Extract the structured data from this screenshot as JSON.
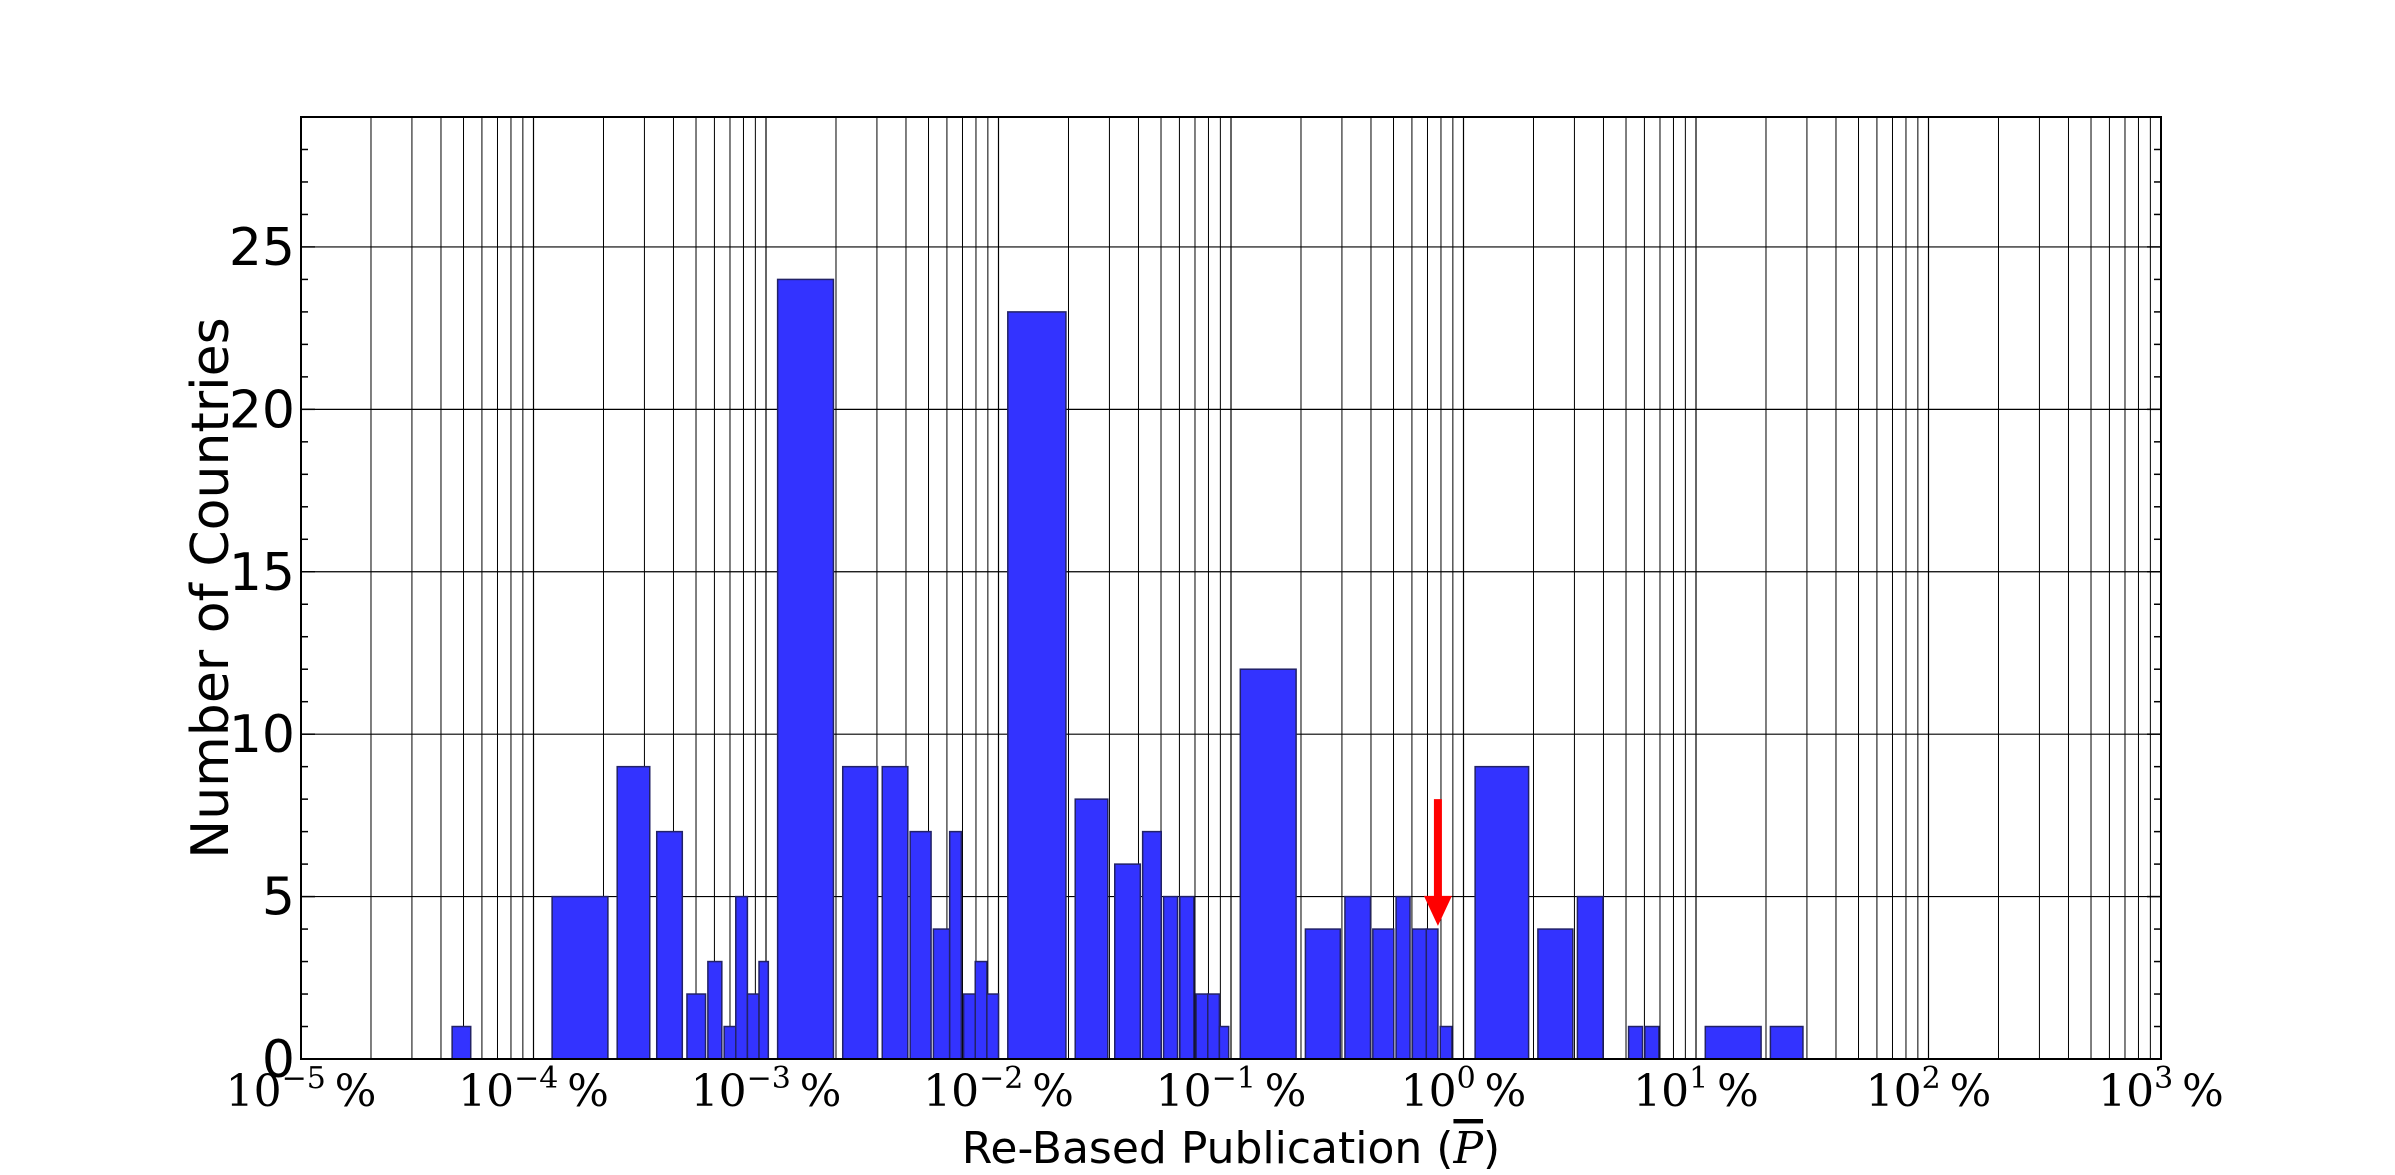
{
  "chart_data": {
    "type": "bar",
    "title": "",
    "xlabel": "Re-Based Publication (P)",
    "xlabel_parts": {
      "prefix": "Re-Based Publication (",
      "symbol": "P",
      "suffix": ")"
    },
    "ylabel": "Number of Countries",
    "x_scale": "log",
    "xlim_exponent": [
      -5,
      3
    ],
    "ylim": [
      0,
      29
    ],
    "grid": true,
    "x_ticks": [
      {
        "base": "10",
        "exp": "−5",
        "unit": "%",
        "value": -5
      },
      {
        "base": "10",
        "exp": "−4",
        "unit": "%",
        "value": -4
      },
      {
        "base": "10",
        "exp": "−3",
        "unit": "%",
        "value": -3
      },
      {
        "base": "10",
        "exp": "−2",
        "unit": "%",
        "value": -2
      },
      {
        "base": "10",
        "exp": "−1",
        "unit": "%",
        "value": -1
      },
      {
        "base": "10",
        "exp": "0",
        "unit": "%",
        "value": 0
      },
      {
        "base": "10",
        "exp": "1",
        "unit": "%",
        "value": 1
      },
      {
        "base": "10",
        "exp": "2",
        "unit": "%",
        "value": 2
      },
      {
        "base": "10",
        "exp": "3",
        "unit": "%",
        "value": 3
      }
    ],
    "y_ticks": [
      "0",
      "5",
      "10",
      "15",
      "20",
      "25"
    ],
    "bar_color": "#3333ff",
    "bar_edge_color": "#222266",
    "bars": [
      {
        "x0": -4.35,
        "x1": -4.27,
        "count": 1
      },
      {
        "x0": -3.92,
        "x1": -3.68,
        "count": 5
      },
      {
        "x0": -3.64,
        "x1": -3.5,
        "count": 9
      },
      {
        "x0": -3.47,
        "x1": -3.36,
        "count": 7
      },
      {
        "x0": -3.34,
        "x1": -3.26,
        "count": 2
      },
      {
        "x0": -3.25,
        "x1": -3.19,
        "count": 3
      },
      {
        "x0": -3.18,
        "x1": -3.13,
        "count": 1
      },
      {
        "x0": -3.13,
        "x1": -3.08,
        "count": 5
      },
      {
        "x0": -3.08,
        "x1": -3.03,
        "count": 2
      },
      {
        "x0": -3.03,
        "x1": -2.99,
        "count": 3
      },
      {
        "x0": -2.95,
        "x1": -2.71,
        "count": 24
      },
      {
        "x0": -2.67,
        "x1": -2.52,
        "count": 9
      },
      {
        "x0": -2.5,
        "x1": -2.39,
        "count": 9
      },
      {
        "x0": -2.38,
        "x1": -2.29,
        "count": 7
      },
      {
        "x0": -2.28,
        "x1": -2.21,
        "count": 4
      },
      {
        "x0": -2.21,
        "x1": -2.16,
        "count": 7
      },
      {
        "x0": -2.15,
        "x1": -2.1,
        "count": 2
      },
      {
        "x0": -2.1,
        "x1": -2.05,
        "count": 3
      },
      {
        "x0": -2.05,
        "x1": -2.0,
        "count": 2
      },
      {
        "x0": -1.96,
        "x1": -1.71,
        "count": 23
      },
      {
        "x0": -1.67,
        "x1": -1.53,
        "count": 8
      },
      {
        "x0": -1.5,
        "x1": -1.39,
        "count": 6
      },
      {
        "x0": -1.38,
        "x1": -1.3,
        "count": 7
      },
      {
        "x0": -1.29,
        "x1": -1.23,
        "count": 5
      },
      {
        "x0": -1.22,
        "x1": -1.16,
        "count": 5
      },
      {
        "x0": -1.15,
        "x1": -1.1,
        "count": 2
      },
      {
        "x0": -1.1,
        "x1": -1.05,
        "count": 2
      },
      {
        "x0": -1.05,
        "x1": -1.01,
        "count": 1
      },
      {
        "x0": -0.96,
        "x1": -0.72,
        "count": 12
      },
      {
        "x0": -0.68,
        "x1": -0.53,
        "count": 4
      },
      {
        "x0": -0.51,
        "x1": -0.4,
        "count": 5
      },
      {
        "x0": -0.39,
        "x1": -0.3,
        "count": 4
      },
      {
        "x0": -0.29,
        "x1": -0.23,
        "count": 5
      },
      {
        "x0": -0.22,
        "x1": -0.16,
        "count": 4
      },
      {
        "x0": -0.16,
        "x1": -0.11,
        "count": 4
      },
      {
        "x0": -0.1,
        "x1": -0.05,
        "count": 1
      },
      {
        "x0": 0.05,
        "x1": 0.28,
        "count": 9
      },
      {
        "x0": 0.32,
        "x1": 0.47,
        "count": 4
      },
      {
        "x0": 0.49,
        "x1": 0.6,
        "count": 5
      },
      {
        "x0": 0.71,
        "x1": 0.77,
        "count": 1
      },
      {
        "x0": 0.78,
        "x1": 0.84,
        "count": 1
      },
      {
        "x0": 1.04,
        "x1": 1.28,
        "count": 1
      },
      {
        "x0": 1.32,
        "x1": 1.46,
        "count": 1
      }
    ],
    "annotation": {
      "type": "arrow",
      "color": "#ff0000",
      "x": -0.11,
      "y_start": 8,
      "y_end": 4.1
    }
  }
}
